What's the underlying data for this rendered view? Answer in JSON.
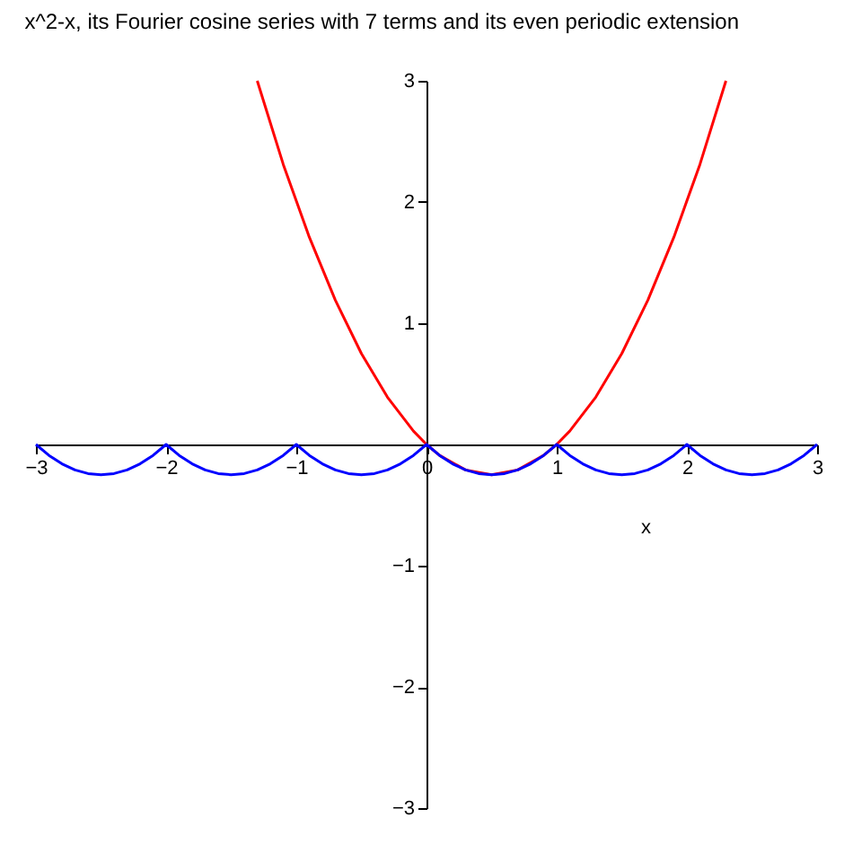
{
  "chart_data": {
    "type": "line",
    "title": "x^2-x, its Fourier cosine series with 7 terms and its even periodic extension",
    "xlabel": "x",
    "xlim": [
      -3,
      3
    ],
    "ylim": [
      -3,
      3
    ],
    "xticks": [
      -3,
      -2,
      -1,
      0,
      1,
      2,
      3
    ],
    "yticks": [
      -3,
      -2,
      -1,
      1,
      2,
      3
    ],
    "grid": false,
    "marker": "none",
    "line_style": "solid",
    "series": [
      {
        "color": "#ff0000",
        "x": [
          -1.3,
          -1.1,
          -0.9,
          -0.7,
          -0.5,
          -0.3,
          -0.1,
          0,
          0.1,
          0.3,
          0.5,
          0.7,
          0.9,
          1,
          1.1,
          1.3,
          1.5,
          1.7,
          1.9,
          2.1,
          2.3
        ],
        "values": [
          3.0,
          2.31,
          1.71,
          1.19,
          0.75,
          0.39,
          0.11,
          0,
          -0.09,
          -0.21,
          -0.25,
          -0.21,
          -0.09,
          0,
          0.11,
          0.39,
          0.75,
          1.19,
          1.71,
          2.31,
          3.0
        ]
      },
      {
        "color": "#0000ff",
        "x": [
          -3,
          -2.9,
          -2.8,
          -2.7,
          -2.6,
          -2.5,
          -2.4,
          -2.3,
          -2.2,
          -2.1,
          -2,
          -1.9,
          -1.8,
          -1.7,
          -1.6,
          -1.5,
          -1.4,
          -1.3,
          -1.2,
          -1.1,
          -1,
          -0.9,
          -0.8,
          -0.7,
          -0.6,
          -0.5,
          -0.4,
          -0.3,
          -0.2,
          -0.1,
          0,
          0.1,
          0.2,
          0.3,
          0.4,
          0.5,
          0.6,
          0.7,
          0.8,
          0.9,
          1,
          1.1,
          1.2,
          1.3,
          1.4,
          1.5,
          1.6,
          1.7,
          1.8,
          1.9,
          2,
          2.1,
          2.2,
          2.3,
          2.4,
          2.5,
          2.6,
          2.7,
          2.8,
          2.9,
          3
        ],
        "values": [
          0,
          -0.09,
          -0.16,
          -0.21,
          -0.24,
          -0.25,
          -0.24,
          -0.21,
          -0.16,
          -0.09,
          0,
          -0.09,
          -0.16,
          -0.21,
          -0.24,
          -0.25,
          -0.24,
          -0.21,
          -0.16,
          -0.09,
          0,
          -0.09,
          -0.16,
          -0.21,
          -0.24,
          -0.25,
          -0.24,
          -0.21,
          -0.16,
          -0.09,
          0,
          -0.09,
          -0.16,
          -0.21,
          -0.24,
          -0.25,
          -0.24,
          -0.21,
          -0.16,
          -0.09,
          0,
          -0.09,
          -0.16,
          -0.21,
          -0.24,
          -0.25,
          -0.24,
          -0.21,
          -0.16,
          -0.09,
          0,
          -0.09,
          -0.16,
          -0.21,
          -0.24,
          -0.25,
          -0.24,
          -0.21,
          -0.16,
          -0.09,
          0
        ]
      }
    ]
  }
}
